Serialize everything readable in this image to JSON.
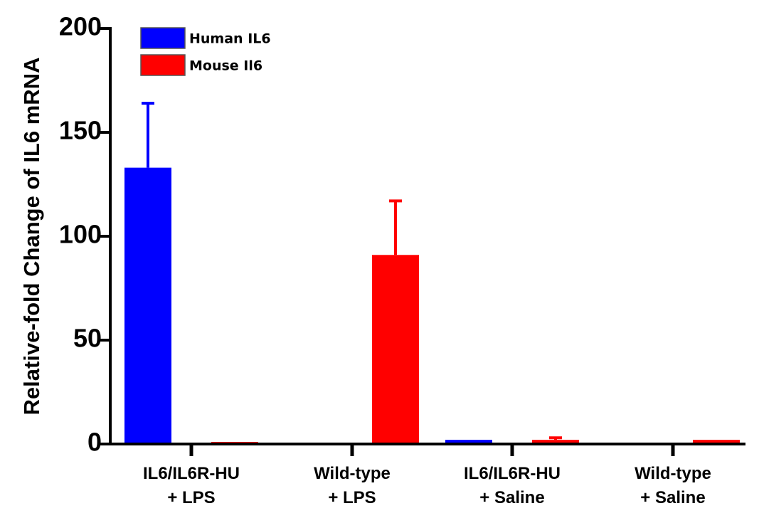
{
  "chart_data": {
    "type": "bar",
    "categories": [
      [
        "IL6/IL6R-HU",
        "+ LPS"
      ],
      [
        "Wild-type",
        "+ LPS"
      ],
      [
        "IL6/IL6R-HU",
        "+ Saline"
      ],
      [
        "Wild-type",
        "+ Saline"
      ]
    ],
    "series": [
      {
        "name": "Human IL6",
        "color": "#0000ff",
        "values": [
          133,
          null,
          2,
          null
        ],
        "errors": [
          31,
          null,
          0,
          null
        ]
      },
      {
        "name": "Mouse Il6",
        "color": "#ff0000",
        "values": [
          1,
          91,
          2,
          2
        ],
        "errors": [
          0,
          26,
          1,
          0
        ]
      }
    ],
    "title": "",
    "xlabel": "",
    "ylabel": "Relative-fold Change of IL6 mRNA",
    "ylim": [
      0,
      200
    ],
    "yticks": [
      0,
      50,
      100,
      150,
      200
    ],
    "grid": false,
    "legend_position": "top-left"
  }
}
